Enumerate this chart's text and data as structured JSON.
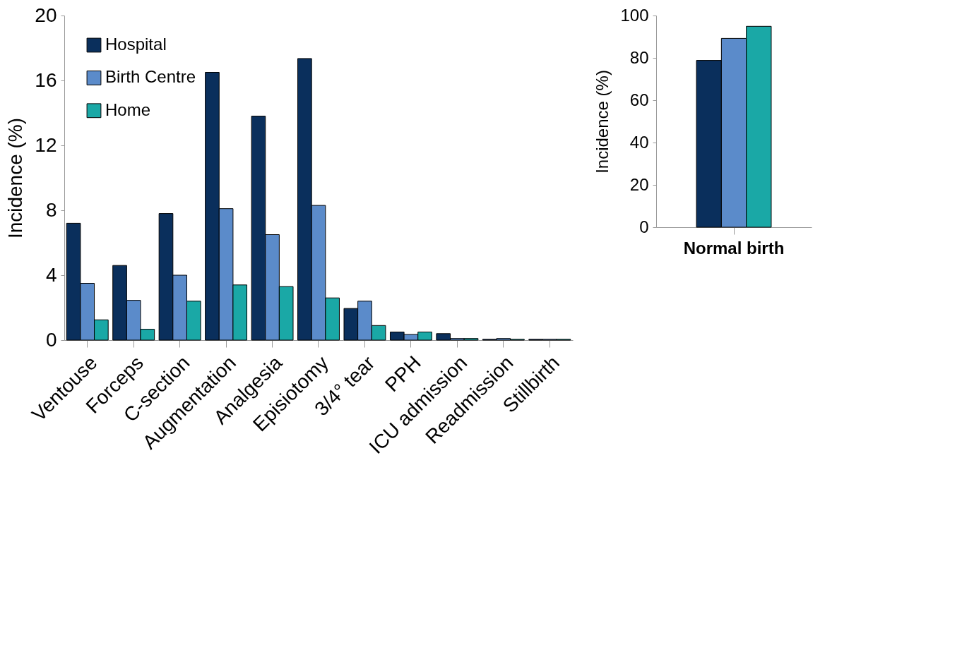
{
  "chart_data": [
    {
      "type": "bar",
      "ylabel": "Incidence (%)",
      "categories": [
        "Ventouse",
        "Forceps",
        "C-section",
        "Augmentation",
        "Analgesia",
        "Episiotomy",
        "3/4° tear",
        "PPH",
        "ICU admission",
        "Readmission",
        "Stillbirth"
      ],
      "series": [
        {
          "name": "Hospital",
          "color": "#0a2f5c",
          "values": [
            7.2,
            4.6,
            7.8,
            16.5,
            13.8,
            17.35,
            1.95,
            0.5,
            0.4,
            0.05,
            0.05
          ]
        },
        {
          "name": "Birth Centre",
          "color": "#5b8bca",
          "values": [
            3.5,
            2.45,
            4.0,
            8.1,
            6.5,
            8.3,
            2.4,
            0.35,
            0.1,
            0.1,
            0.05
          ]
        },
        {
          "name": "Home",
          "color": "#1aa8a6",
          "values": [
            1.25,
            0.67,
            2.4,
            3.4,
            3.3,
            2.6,
            0.9,
            0.5,
            0.1,
            0.05,
            0.05
          ]
        }
      ],
      "ylim": [
        0,
        20
      ],
      "yticks": [
        0,
        4,
        8,
        12,
        16,
        20
      ],
      "grid": false,
      "legend": "top left"
    },
    {
      "type": "bar",
      "ylabel": "Incidence (%)",
      "categories": [
        "Normal birth"
      ],
      "series": [
        {
          "color": "#0a2f5c",
          "values": [
            78.8
          ]
        },
        {
          "color": "#5b8bca",
          "values": [
            89.2
          ]
        },
        {
          "color": "#1aa8a6",
          "values": [
            94.9
          ]
        }
      ],
      "ylim": [
        0,
        100
      ],
      "yticks": [
        0,
        20,
        40,
        60,
        80,
        100
      ],
      "grid": false,
      "legend": false
    }
  ]
}
